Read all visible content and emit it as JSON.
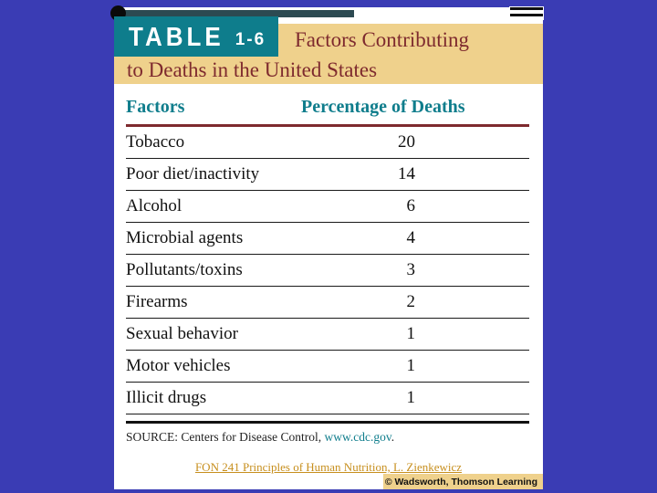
{
  "slide": {
    "header": {
      "table_label": "TABLE",
      "table_number": "1-6",
      "title_line1": "Factors Contributing",
      "title_line2": "to Deaths in the United States"
    },
    "table": {
      "col_factors": "Factors",
      "col_percentage": "Percentage of Deaths",
      "rows": [
        {
          "factor": "Tobacco",
          "value": "20"
        },
        {
          "factor": "Poor diet/inactivity",
          "value": "14"
        },
        {
          "factor": "Alcohol",
          "value": "6"
        },
        {
          "factor": "Microbial agents",
          "value": "4"
        },
        {
          "factor": "Pollutants/toxins",
          "value": "3"
        },
        {
          "factor": "Firearms",
          "value": "2"
        },
        {
          "factor": "Sexual behavior",
          "value": "1"
        },
        {
          "factor": "Motor vehicles",
          "value": "1"
        },
        {
          "factor": "Illicit drugs",
          "value": "1"
        }
      ]
    },
    "source": {
      "prefix": "SOURCE: Centers for Disease Control, ",
      "link": "www.cdc.gov",
      "suffix": "."
    },
    "footer": {
      "course_link": "FON 241 Principles of Human Nutrition, L. Zienkewicz",
      "copyright": "© Wadsworth, Thomson Learning"
    }
  },
  "colors": {
    "background_blue": "#3A3CB4",
    "teal": "#0E7D8C",
    "tan": "#EFD18C",
    "maroon_title": "#7E2A2E",
    "link_orange": "#C78F1E"
  },
  "chart_data": {
    "type": "table",
    "title": "TABLE 1-6 Factors Contributing to Deaths in the United States",
    "columns": [
      "Factors",
      "Percentage of Deaths"
    ],
    "rows": [
      [
        "Tobacco",
        20
      ],
      [
        "Poor diet/inactivity",
        14
      ],
      [
        "Alcohol",
        6
      ],
      [
        "Microbial agents",
        4
      ],
      [
        "Pollutants/toxins",
        3
      ],
      [
        "Firearms",
        2
      ],
      [
        "Sexual behavior",
        1
      ],
      [
        "Motor vehicles",
        1
      ],
      [
        "Illicit drugs",
        1
      ]
    ],
    "source": "SOURCE: Centers for Disease Control, www.cdc.gov."
  }
}
